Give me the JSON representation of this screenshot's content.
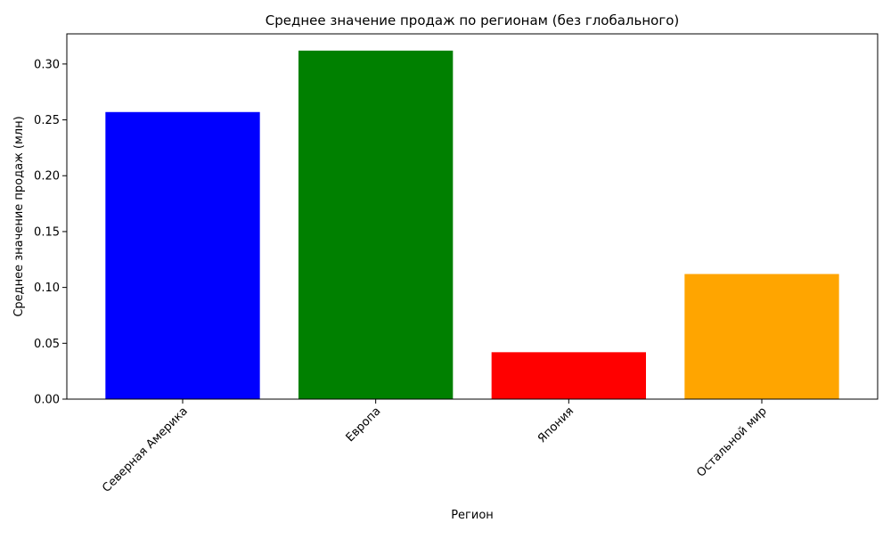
{
  "chart_data": {
    "type": "bar",
    "title": "Среднее значение продаж по регионам (без глобального)",
    "xlabel": "Регион",
    "ylabel": "Среднее значение продаж (млн)",
    "categories": [
      "Северная Америка",
      "Европа",
      "Япония",
      "Остальной мир"
    ],
    "values": [
      0.257,
      0.312,
      0.042,
      0.112
    ],
    "colors": [
      "#0000ff",
      "#008000",
      "#ff0000",
      "#ffa500"
    ],
    "ylim": [
      0,
      0.327
    ],
    "yticks": [
      0.0,
      0.05,
      0.1,
      0.15,
      0.2,
      0.25,
      0.3
    ],
    "ytick_labels": [
      "0.00",
      "0.05",
      "0.10",
      "0.15",
      "0.20",
      "0.25",
      "0.30"
    ],
    "grid": false,
    "xtick_rotation_deg": 45
  }
}
